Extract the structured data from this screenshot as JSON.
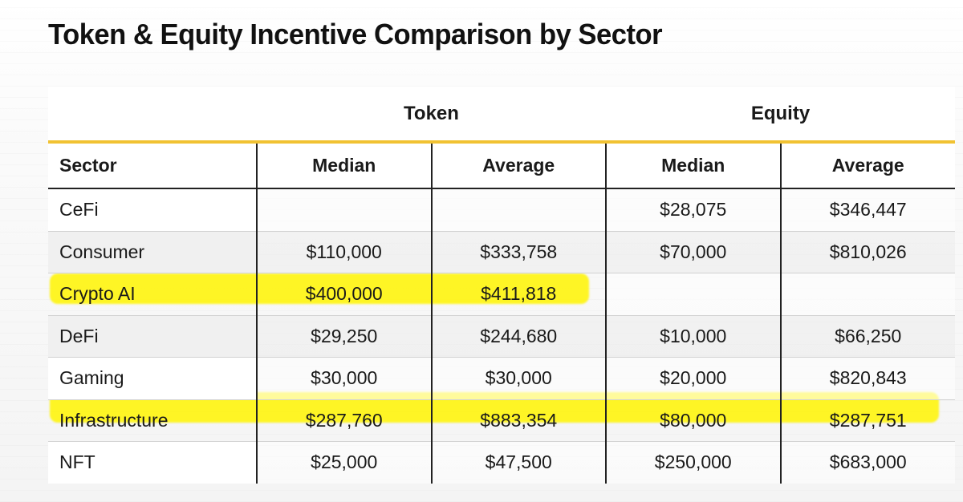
{
  "title": "Token & Equity Incentive Comparison by Sector",
  "groups": [
    "Token",
    "Equity"
  ],
  "columns": [
    "Sector",
    "Median",
    "Average",
    "Median",
    "Average"
  ],
  "rows": [
    {
      "sector": "CeFi",
      "token_median": "",
      "token_average": "",
      "equity_median": "$28,075",
      "equity_average": "$346,447"
    },
    {
      "sector": "Consumer",
      "token_median": "$110,000",
      "token_average": "$333,758",
      "equity_median": "$70,000",
      "equity_average": "$810,026"
    },
    {
      "sector": "Crypto AI",
      "token_median": "$400,000",
      "token_average": "$411,818",
      "equity_median": "",
      "equity_average": "",
      "highlighted": true
    },
    {
      "sector": "DeFi",
      "token_median": "$29,250",
      "token_average": "$244,680",
      "equity_median": "$10,000",
      "equity_average": "$66,250"
    },
    {
      "sector": "Gaming",
      "token_median": "$30,000",
      "token_average": "$30,000",
      "equity_median": "$20,000",
      "equity_average": "$820,843"
    },
    {
      "sector": "Infrastructure",
      "token_median": "$287,760",
      "token_average": "$883,354",
      "equity_median": "$80,000",
      "equity_average": "$287,751",
      "highlighted": true
    },
    {
      "sector": "NFT",
      "token_median": "$25,000",
      "token_average": "$47,500",
      "equity_median": "$250,000",
      "equity_average": "$683,000"
    }
  ],
  "colors": {
    "accent_rule": "#f1c232",
    "highlight": "#fff500"
  }
}
